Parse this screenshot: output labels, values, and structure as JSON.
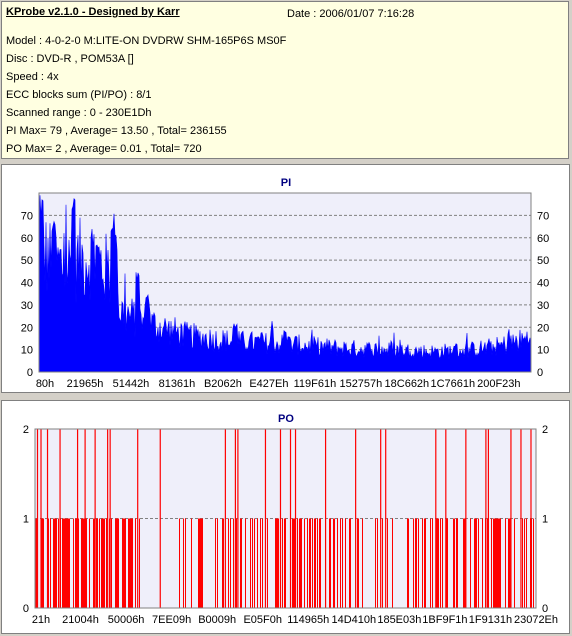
{
  "header": {
    "title": "KProbe v2.1.0 - Designed by Karr",
    "date": "Date : 2006/01/07 7:16:28",
    "lines": [
      "Model : 4-0-2-0 M:LITE-ON DVDRW SHM-165P6S MS0F",
      "Disc : DVD-R , POM53A []",
      "Speed : 4x",
      "ECC blocks sum (PI/PO) : 8/1",
      "Scanned range : 0 - 230E1Dh",
      "PI Max= 79 , Average= 13.50 , Total= 236155",
      "PO Max= 2 , Average= 0.01 , Total= 720"
    ]
  },
  "colors": {
    "pi": "#0000ff",
    "po": "#ff0000",
    "plot_bg": "#efeffa",
    "title": "#000080"
  },
  "chart_data": [
    {
      "type": "area",
      "title": "PI",
      "ylim": [
        0,
        80
      ],
      "yticks": [
        0,
        10,
        20,
        30,
        40,
        50,
        60,
        70
      ],
      "xticks": [
        "80h",
        "21965h",
        "51442h",
        "81361h",
        "B2062h",
        "E427Eh",
        "119F61h",
        "152757h",
        "18C662h",
        "1C7661h",
        "200F23h"
      ],
      "max": 79,
      "average": 13.5,
      "profile": [
        [
          0,
          62
        ],
        [
          0.02,
          56
        ],
        [
          0.05,
          52
        ],
        [
          0.08,
          55
        ],
        [
          0.11,
          58
        ],
        [
          0.13,
          52
        ],
        [
          0.155,
          45
        ],
        [
          0.165,
          30
        ],
        [
          0.2,
          26
        ],
        [
          0.25,
          22
        ],
        [
          0.3,
          18
        ],
        [
          0.4,
          15
        ],
        [
          0.5,
          14
        ],
        [
          0.6,
          12
        ],
        [
          0.7,
          11
        ],
        [
          0.8,
          10
        ],
        [
          0.88,
          11
        ],
        [
          0.94,
          13
        ],
        [
          1.0,
          17
        ]
      ],
      "peaks": [
        [
          0.005,
          79
        ],
        [
          0.03,
          72
        ],
        [
          0.07,
          78
        ],
        [
          0.15,
          74
        ],
        [
          0.155,
          62
        ],
        [
          0.2,
          45
        ],
        [
          0.22,
          35
        ],
        [
          0.4,
          22
        ],
        [
          0.5,
          20
        ]
      ]
    },
    {
      "type": "bar",
      "title": "PO",
      "ylim": [
        0,
        2
      ],
      "yticks": [
        0,
        1,
        2
      ],
      "xticks": [
        "21h",
        "21004h",
        "50006h",
        "7EE09h",
        "B0009h",
        "E05F0h",
        "114965h",
        "14D410h",
        "185E03h",
        "1BF9F1h",
        "1F9131h",
        "23072Eh"
      ],
      "max": 2,
      "average": 0.01,
      "level2": [
        0.005,
        0.012,
        0.025,
        0.05,
        0.085,
        0.1,
        0.12,
        0.145,
        0.15,
        0.205,
        0.25,
        0.38,
        0.4,
        0.405,
        0.46,
        0.49,
        0.51,
        0.52,
        0.58,
        0.64,
        0.69,
        0.7,
        0.8,
        0.82,
        0.86,
        0.9,
        0.905,
        0.95,
        0.97,
        0.99
      ],
      "level1_clusters": [
        [
          0,
          0.21,
          0.55
        ],
        [
          0.28,
          0.34,
          0.2
        ],
        [
          0.36,
          0.48,
          0.3
        ],
        [
          0.48,
          0.56,
          0.5
        ],
        [
          0.56,
          0.72,
          0.25
        ],
        [
          0.74,
          0.8,
          0.2
        ],
        [
          0.8,
          0.88,
          0.55
        ],
        [
          0.88,
          1.0,
          0.5
        ]
      ]
    }
  ]
}
